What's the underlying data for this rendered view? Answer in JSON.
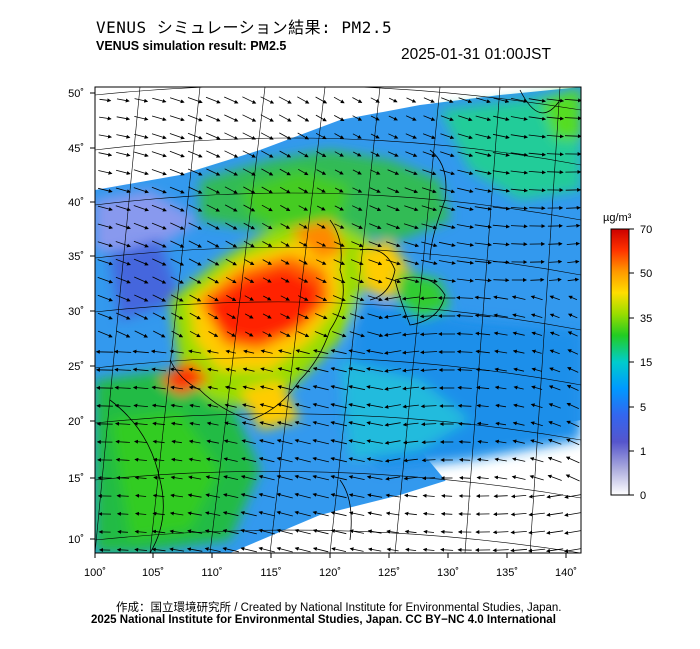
{
  "title_jp": "VENUS シミュレーション結果: PM2.5",
  "title_en": "VENUS simulation result: PM2.5",
  "timestamp": "2025-01-31 01:00JST",
  "x_ticks": [
    "100˚",
    "105˚",
    "110˚",
    "115˚",
    "120˚",
    "125˚",
    "130˚",
    "135˚",
    "140˚"
  ],
  "y_ticks": [
    "50˚",
    "45˚",
    "40˚",
    "35˚",
    "30˚",
    "25˚",
    "20˚",
    "15˚",
    "10˚"
  ],
  "colorbar": {
    "unit": "µg/m³",
    "labels": [
      "70",
      "50",
      "35",
      "15",
      "5",
      "1",
      "0"
    ],
    "colors": [
      "#cc0000",
      "#ff3300",
      "#ff9900",
      "#ffdd00",
      "#99dd00",
      "#22cc22",
      "#00cccc",
      "#0099ff",
      "#3366ee",
      "#5555cc",
      "#aaaadd",
      "#ffffff"
    ]
  },
  "credit": "作成：国立環境研究所 / Created by National Institute for Environmental Studies, Japan.",
  "copyright": "2025 National Institute for Environmental Studies, Japan. CC BY−NC 4.0 International"
}
